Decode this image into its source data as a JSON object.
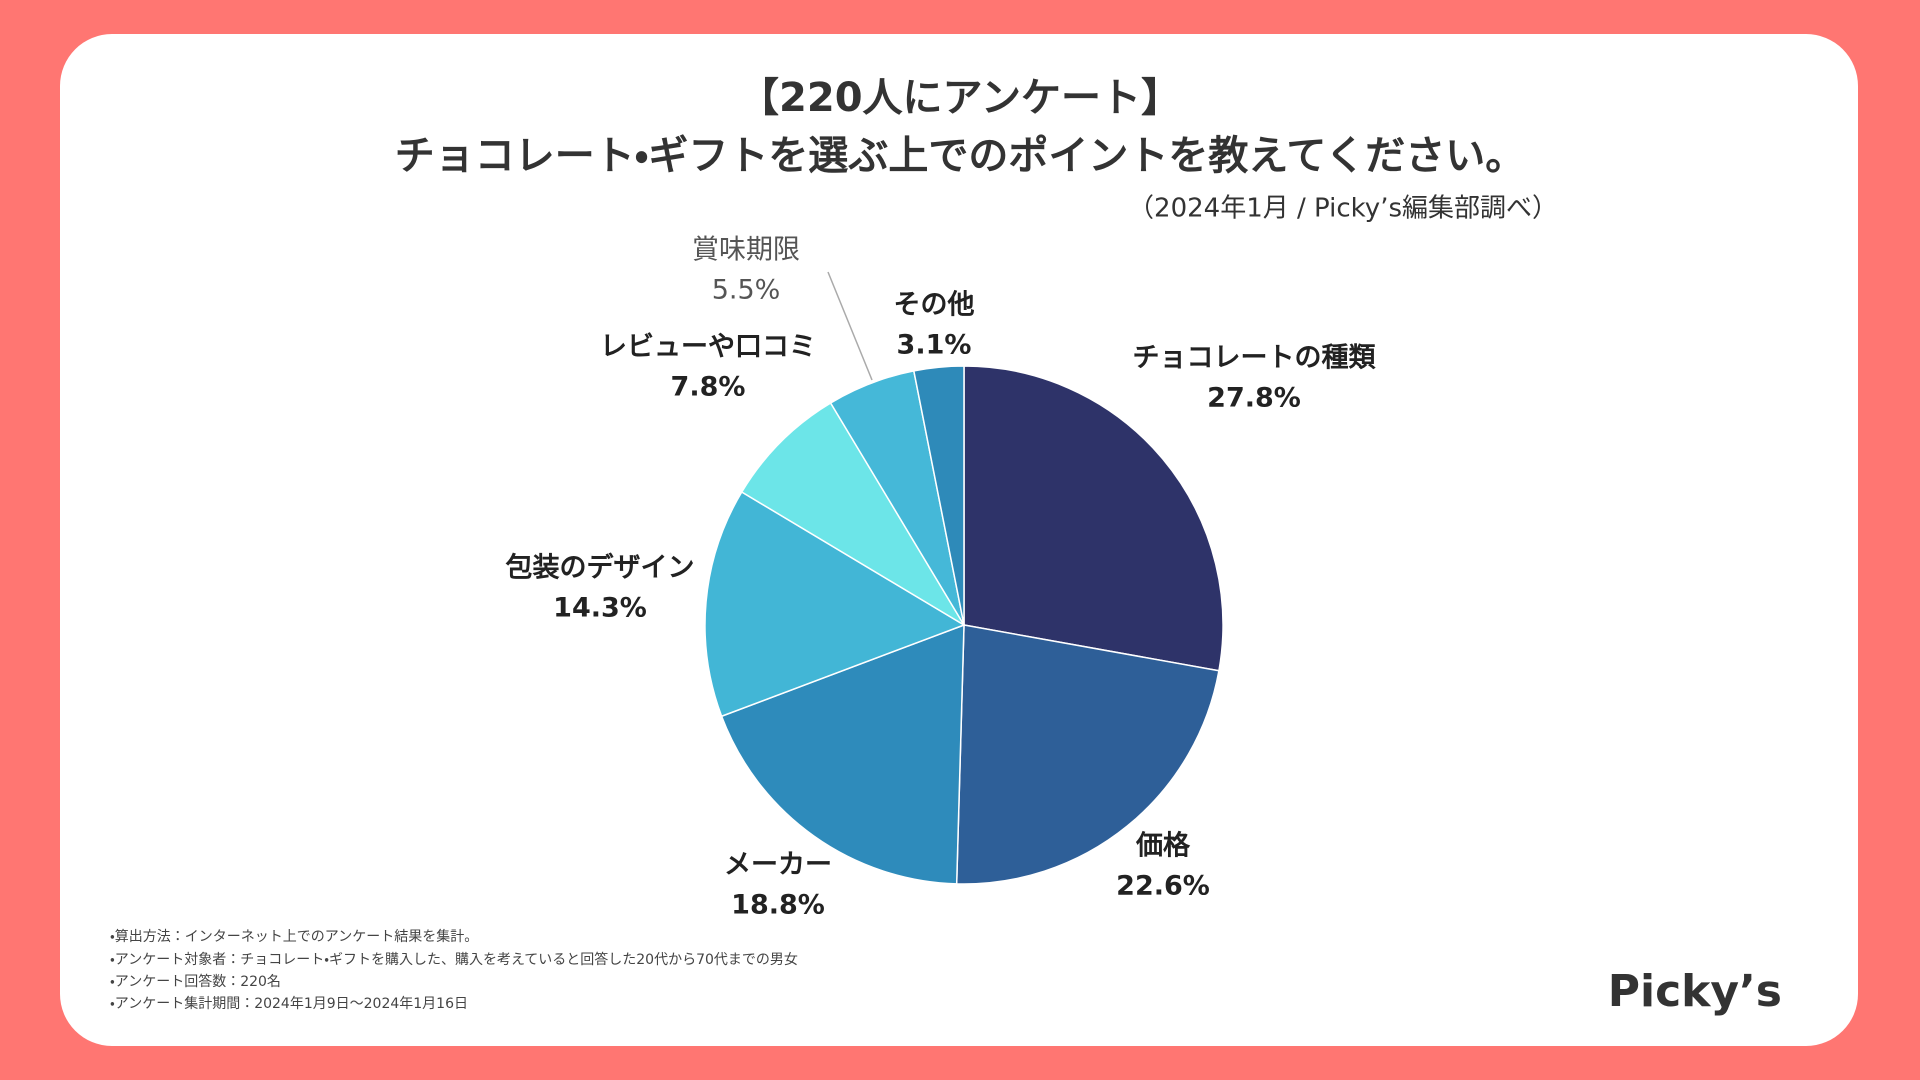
{
  "chart_data": {
    "type": "pie",
    "title": [
      "【220人にアンケート】",
      "チョコレート・ギフトを選ぶ上でのポイントを教えてください。"
    ],
    "subtitle": "（2024年1月 / Picky’s編集部調べ）",
    "categories": [
      "チョコレートの種類",
      "価格",
      "メーカー",
      "包装のデザイン",
      "レビューや口コミ",
      "賞味期限",
      "その他"
    ],
    "values": [
      27.8,
      22.6,
      18.8,
      14.3,
      7.8,
      5.5,
      3.1
    ],
    "value_labels": [
      "27.8%",
      "22.6%",
      "18.8%",
      "14.3%",
      "7.8%",
      "5.5%",
      "3.1%"
    ],
    "colors": [
      "#2e3369",
      "#2e5f98",
      "#2e8bbb",
      "#42b6d6",
      "#6ce5e8",
      "#45b8d8",
      "#2e8ab9"
    ]
  },
  "notes": [
    "・算出方法：インターネット上でのアンケート結果を集計。",
    "・アンケート対象者：チョコレート・ギフトを購入した、購入を考えていると回答した20代から70代までの男女",
    "・アンケート回答数：220名",
    "・アンケート集計期間：2024年1月9日〜2024年1月16日"
  ],
  "logo": "Picky’s"
}
